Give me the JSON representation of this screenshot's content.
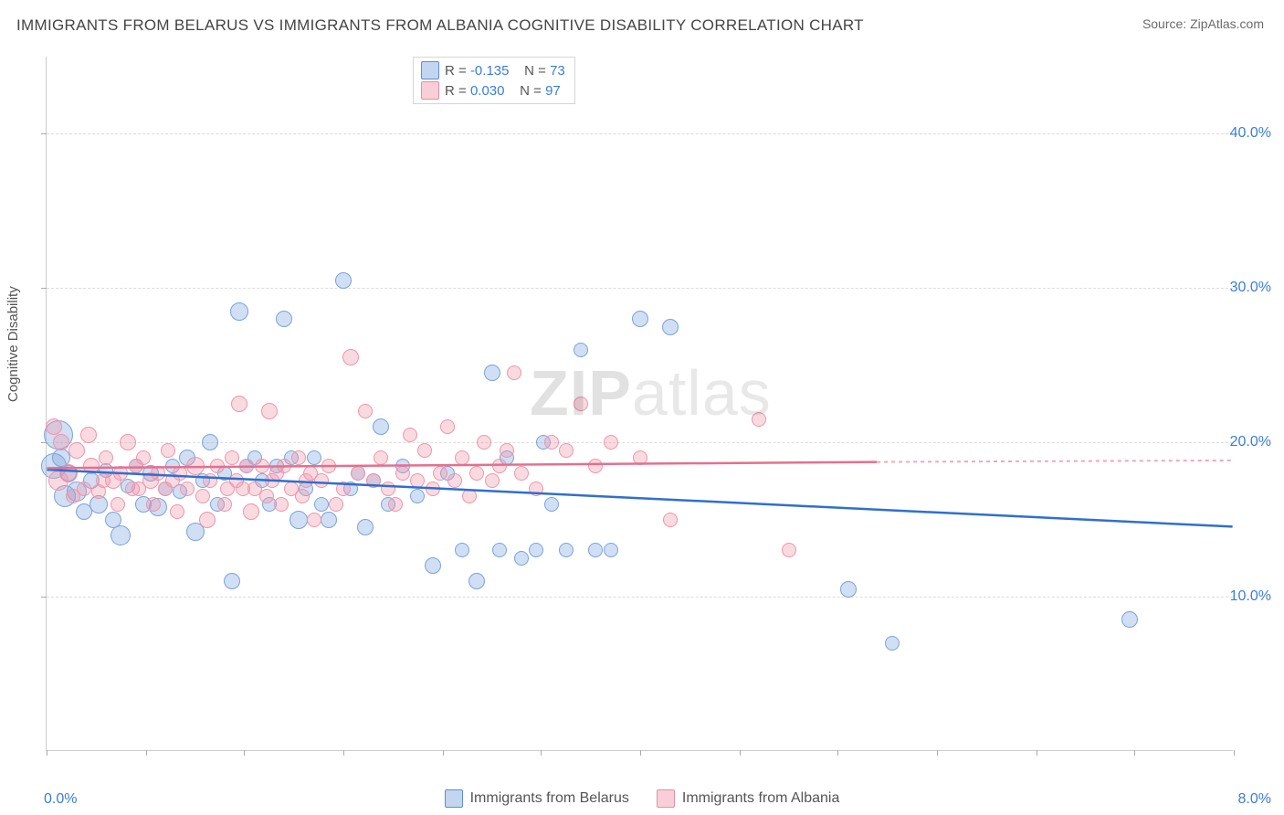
{
  "title": "IMMIGRANTS FROM BELARUS VS IMMIGRANTS FROM ALBANIA COGNITIVE DISABILITY CORRELATION CHART",
  "source": "Source: ZipAtlas.com",
  "y_axis_label": "Cognitive Disability",
  "watermark_bold": "ZIP",
  "watermark_rest": "atlas",
  "chart": {
    "type": "scatter",
    "xlim": [
      0.0,
      8.0
    ],
    "ylim": [
      0.0,
      45.0
    ],
    "x_ticks": [
      0,
      0.67,
      1.33,
      2.0,
      2.67,
      3.33,
      4.0,
      4.67,
      5.33,
      6.0,
      6.67,
      7.33,
      8.0
    ],
    "x_labels": {
      "0": "0.0%",
      "8": "8.0%"
    },
    "y_gridlines": [
      10,
      20,
      30,
      40
    ],
    "y_labels": {
      "10": "10.0%",
      "20": "20.0%",
      "30": "30.0%",
      "40": "40.0%"
    },
    "background_color": "#ffffff",
    "grid_color": "#dcdcdc",
    "axis_color": "#cccccc",
    "tick_label_color": "#3b7dd8",
    "series": [
      {
        "id": "belarus",
        "label": "Immigrants from Belarus",
        "color_fill": "rgba(119,163,221,0.35)",
        "color_stroke": "#7aa3dc",
        "trend_color": "#2f6fd0",
        "R": "-0.135",
        "N": "73",
        "trend": {
          "x1": 0.0,
          "y1": 18.2,
          "x2": 8.0,
          "y2": 14.5,
          "dashed_from_x": null
        },
        "points": [
          {
            "x": 0.05,
            "y": 18.5,
            "r": 14
          },
          {
            "x": 0.08,
            "y": 20.5,
            "r": 16
          },
          {
            "x": 0.1,
            "y": 19.0,
            "r": 10
          },
          {
            "x": 0.12,
            "y": 16.5,
            "r": 12
          },
          {
            "x": 0.15,
            "y": 18.0,
            "r": 9
          },
          {
            "x": 0.2,
            "y": 16.8,
            "r": 11
          },
          {
            "x": 0.25,
            "y": 15.5,
            "r": 9
          },
          {
            "x": 0.3,
            "y": 17.5,
            "r": 9
          },
          {
            "x": 0.35,
            "y": 16.0,
            "r": 10
          },
          {
            "x": 0.4,
            "y": 18.2,
            "r": 8
          },
          {
            "x": 0.45,
            "y": 15.0,
            "r": 9
          },
          {
            "x": 0.5,
            "y": 14.0,
            "r": 11
          },
          {
            "x": 0.55,
            "y": 17.2,
            "r": 8
          },
          {
            "x": 0.6,
            "y": 18.5,
            "r": 8
          },
          {
            "x": 0.65,
            "y": 16.0,
            "r": 9
          },
          {
            "x": 0.7,
            "y": 18.0,
            "r": 9
          },
          {
            "x": 0.75,
            "y": 15.8,
            "r": 10
          },
          {
            "x": 0.8,
            "y": 17.0,
            "r": 8
          },
          {
            "x": 0.85,
            "y": 18.5,
            "r": 8
          },
          {
            "x": 0.9,
            "y": 16.8,
            "r": 8
          },
          {
            "x": 0.95,
            "y": 19.0,
            "r": 9
          },
          {
            "x": 1.0,
            "y": 14.2,
            "r": 10
          },
          {
            "x": 1.05,
            "y": 17.5,
            "r": 8
          },
          {
            "x": 1.1,
            "y": 20.0,
            "r": 9
          },
          {
            "x": 1.15,
            "y": 16.0,
            "r": 8
          },
          {
            "x": 1.2,
            "y": 18.0,
            "r": 8
          },
          {
            "x": 1.25,
            "y": 11.0,
            "r": 9
          },
          {
            "x": 1.3,
            "y": 28.5,
            "r": 10
          },
          {
            "x": 1.35,
            "y": 18.5,
            "r": 8
          },
          {
            "x": 1.4,
            "y": 19.0,
            "r": 8
          },
          {
            "x": 1.45,
            "y": 17.5,
            "r": 8
          },
          {
            "x": 1.5,
            "y": 16.0,
            "r": 8
          },
          {
            "x": 1.55,
            "y": 18.5,
            "r": 8
          },
          {
            "x": 1.6,
            "y": 28.0,
            "r": 9
          },
          {
            "x": 1.65,
            "y": 19.0,
            "r": 8
          },
          {
            "x": 1.7,
            "y": 15.0,
            "r": 10
          },
          {
            "x": 1.75,
            "y": 17.0,
            "r": 8
          },
          {
            "x": 1.8,
            "y": 19.0,
            "r": 8
          },
          {
            "x": 1.85,
            "y": 16.0,
            "r": 8
          },
          {
            "x": 1.9,
            "y": 15.0,
            "r": 9
          },
          {
            "x": 2.0,
            "y": 30.5,
            "r": 9
          },
          {
            "x": 2.05,
            "y": 17.0,
            "r": 8
          },
          {
            "x": 2.1,
            "y": 18.0,
            "r": 8
          },
          {
            "x": 2.15,
            "y": 14.5,
            "r": 9
          },
          {
            "x": 2.2,
            "y": 17.5,
            "r": 8
          },
          {
            "x": 2.25,
            "y": 21.0,
            "r": 9
          },
          {
            "x": 2.3,
            "y": 16.0,
            "r": 8
          },
          {
            "x": 2.4,
            "y": 18.5,
            "r": 8
          },
          {
            "x": 2.5,
            "y": 16.5,
            "r": 8
          },
          {
            "x": 2.6,
            "y": 12.0,
            "r": 9
          },
          {
            "x": 2.7,
            "y": 18.0,
            "r": 8
          },
          {
            "x": 2.8,
            "y": 13.0,
            "r": 8
          },
          {
            "x": 2.9,
            "y": 11.0,
            "r": 9
          },
          {
            "x": 3.0,
            "y": 24.5,
            "r": 9
          },
          {
            "x": 3.05,
            "y": 13.0,
            "r": 8
          },
          {
            "x": 3.1,
            "y": 19.0,
            "r": 8
          },
          {
            "x": 3.2,
            "y": 12.5,
            "r": 8
          },
          {
            "x": 3.3,
            "y": 13.0,
            "r": 8
          },
          {
            "x": 3.35,
            "y": 20.0,
            "r": 8
          },
          {
            "x": 3.4,
            "y": 16.0,
            "r": 8
          },
          {
            "x": 3.5,
            "y": 13.0,
            "r": 8
          },
          {
            "x": 3.6,
            "y": 26.0,
            "r": 8
          },
          {
            "x": 3.7,
            "y": 13.0,
            "r": 8
          },
          {
            "x": 3.8,
            "y": 13.0,
            "r": 8
          },
          {
            "x": 4.0,
            "y": 28.0,
            "r": 9
          },
          {
            "x": 4.2,
            "y": 27.5,
            "r": 9
          },
          {
            "x": 5.4,
            "y": 10.5,
            "r": 9
          },
          {
            "x": 5.7,
            "y": 7.0,
            "r": 8
          },
          {
            "x": 7.3,
            "y": 8.5,
            "r": 9
          }
        ]
      },
      {
        "id": "albania",
        "label": "Immigrants from Albania",
        "color_fill": "rgba(240,148,170,0.35)",
        "color_stroke": "#f094aa",
        "trend_color": "#e56f8f",
        "R": "0.030",
        "N": "97",
        "trend": {
          "x1": 0.0,
          "y1": 18.3,
          "x2": 5.6,
          "y2": 18.7,
          "dashed_from_x": 5.6,
          "dashed_x2": 8.0,
          "dashed_y2": 18.8
        },
        "points": [
          {
            "x": 0.05,
            "y": 21.0,
            "r": 9
          },
          {
            "x": 0.08,
            "y": 17.5,
            "r": 11
          },
          {
            "x": 0.1,
            "y": 20.0,
            "r": 9
          },
          {
            "x": 0.15,
            "y": 18.0,
            "r": 10
          },
          {
            "x": 0.18,
            "y": 16.5,
            "r": 8
          },
          {
            "x": 0.2,
            "y": 19.5,
            "r": 9
          },
          {
            "x": 0.25,
            "y": 17.0,
            "r": 8
          },
          {
            "x": 0.28,
            "y": 20.5,
            "r": 9
          },
          {
            "x": 0.3,
            "y": 18.5,
            "r": 9
          },
          {
            "x": 0.35,
            "y": 16.8,
            "r": 8
          },
          {
            "x": 0.38,
            "y": 17.5,
            "r": 8
          },
          {
            "x": 0.4,
            "y": 19.0,
            "r": 8
          },
          {
            "x": 0.45,
            "y": 17.5,
            "r": 9
          },
          {
            "x": 0.48,
            "y": 16.0,
            "r": 8
          },
          {
            "x": 0.5,
            "y": 18.0,
            "r": 8
          },
          {
            "x": 0.55,
            "y": 20.0,
            "r": 9
          },
          {
            "x": 0.58,
            "y": 17.0,
            "r": 8
          },
          {
            "x": 0.6,
            "y": 18.5,
            "r": 8
          },
          {
            "x": 0.62,
            "y": 17.0,
            "r": 8
          },
          {
            "x": 0.65,
            "y": 19.0,
            "r": 8
          },
          {
            "x": 0.7,
            "y": 17.5,
            "r": 9
          },
          {
            "x": 0.72,
            "y": 16.0,
            "r": 8
          },
          {
            "x": 0.75,
            "y": 18.0,
            "r": 8
          },
          {
            "x": 0.8,
            "y": 17.0,
            "r": 8
          },
          {
            "x": 0.82,
            "y": 19.5,
            "r": 8
          },
          {
            "x": 0.85,
            "y": 17.5,
            "r": 8
          },
          {
            "x": 0.88,
            "y": 15.5,
            "r": 8
          },
          {
            "x": 0.9,
            "y": 18.0,
            "r": 8
          },
          {
            "x": 0.95,
            "y": 17.0,
            "r": 8
          },
          {
            "x": 1.0,
            "y": 18.5,
            "r": 10
          },
          {
            "x": 1.05,
            "y": 16.5,
            "r": 8
          },
          {
            "x": 1.08,
            "y": 15.0,
            "r": 9
          },
          {
            "x": 1.1,
            "y": 17.5,
            "r": 8
          },
          {
            "x": 1.15,
            "y": 18.5,
            "r": 8
          },
          {
            "x": 1.2,
            "y": 16.0,
            "r": 8
          },
          {
            "x": 1.22,
            "y": 17.0,
            "r": 8
          },
          {
            "x": 1.25,
            "y": 19.0,
            "r": 8
          },
          {
            "x": 1.28,
            "y": 17.5,
            "r": 8
          },
          {
            "x": 1.3,
            "y": 22.5,
            "r": 9
          },
          {
            "x": 1.32,
            "y": 17.0,
            "r": 8
          },
          {
            "x": 1.35,
            "y": 18.5,
            "r": 8
          },
          {
            "x": 1.38,
            "y": 15.5,
            "r": 9
          },
          {
            "x": 1.4,
            "y": 17.0,
            "r": 8
          },
          {
            "x": 1.45,
            "y": 18.5,
            "r": 8
          },
          {
            "x": 1.48,
            "y": 16.5,
            "r": 8
          },
          {
            "x": 1.5,
            "y": 22.0,
            "r": 9
          },
          {
            "x": 1.52,
            "y": 17.5,
            "r": 8
          },
          {
            "x": 1.55,
            "y": 18.0,
            "r": 8
          },
          {
            "x": 1.58,
            "y": 16.0,
            "r": 8
          },
          {
            "x": 1.6,
            "y": 18.5,
            "r": 8
          },
          {
            "x": 1.65,
            "y": 17.0,
            "r": 8
          },
          {
            "x": 1.7,
            "y": 19.0,
            "r": 8
          },
          {
            "x": 1.72,
            "y": 16.5,
            "r": 8
          },
          {
            "x": 1.75,
            "y": 17.5,
            "r": 8
          },
          {
            "x": 1.78,
            "y": 18.0,
            "r": 8
          },
          {
            "x": 1.8,
            "y": 15.0,
            "r": 8
          },
          {
            "x": 1.85,
            "y": 17.5,
            "r": 8
          },
          {
            "x": 1.9,
            "y": 18.5,
            "r": 8
          },
          {
            "x": 1.95,
            "y": 16.0,
            "r": 8
          },
          {
            "x": 2.0,
            "y": 17.0,
            "r": 8
          },
          {
            "x": 2.05,
            "y": 25.5,
            "r": 9
          },
          {
            "x": 2.1,
            "y": 18.0,
            "r": 8
          },
          {
            "x": 2.15,
            "y": 22.0,
            "r": 8
          },
          {
            "x": 2.2,
            "y": 17.5,
            "r": 8
          },
          {
            "x": 2.25,
            "y": 19.0,
            "r": 8
          },
          {
            "x": 2.3,
            "y": 17.0,
            "r": 8
          },
          {
            "x": 2.35,
            "y": 16.0,
            "r": 8
          },
          {
            "x": 2.4,
            "y": 18.0,
            "r": 8
          },
          {
            "x": 2.45,
            "y": 20.5,
            "r": 8
          },
          {
            "x": 2.5,
            "y": 17.5,
            "r": 8
          },
          {
            "x": 2.55,
            "y": 19.5,
            "r": 8
          },
          {
            "x": 2.6,
            "y": 17.0,
            "r": 8
          },
          {
            "x": 2.65,
            "y": 18.0,
            "r": 8
          },
          {
            "x": 2.7,
            "y": 21.0,
            "r": 8
          },
          {
            "x": 2.75,
            "y": 17.5,
            "r": 8
          },
          {
            "x": 2.8,
            "y": 19.0,
            "r": 8
          },
          {
            "x": 2.85,
            "y": 16.5,
            "r": 8
          },
          {
            "x": 2.9,
            "y": 18.0,
            "r": 8
          },
          {
            "x": 2.95,
            "y": 20.0,
            "r": 8
          },
          {
            "x": 3.0,
            "y": 17.5,
            "r": 8
          },
          {
            "x": 3.05,
            "y": 18.5,
            "r": 8
          },
          {
            "x": 3.1,
            "y": 19.5,
            "r": 8
          },
          {
            "x": 3.15,
            "y": 24.5,
            "r": 8
          },
          {
            "x": 3.2,
            "y": 18.0,
            "r": 8
          },
          {
            "x": 3.3,
            "y": 17.0,
            "r": 8
          },
          {
            "x": 3.4,
            "y": 20.0,
            "r": 8
          },
          {
            "x": 3.5,
            "y": 19.5,
            "r": 8
          },
          {
            "x": 3.6,
            "y": 22.5,
            "r": 8
          },
          {
            "x": 3.7,
            "y": 18.5,
            "r": 8
          },
          {
            "x": 3.8,
            "y": 20.0,
            "r": 8
          },
          {
            "x": 4.0,
            "y": 19.0,
            "r": 8
          },
          {
            "x": 4.2,
            "y": 15.0,
            "r": 8
          },
          {
            "x": 4.8,
            "y": 21.5,
            "r": 8
          },
          {
            "x": 5.0,
            "y": 13.0,
            "r": 8
          }
        ]
      }
    ]
  },
  "stat_legend": {
    "r_label": "R = ",
    "n_label": "N = "
  }
}
